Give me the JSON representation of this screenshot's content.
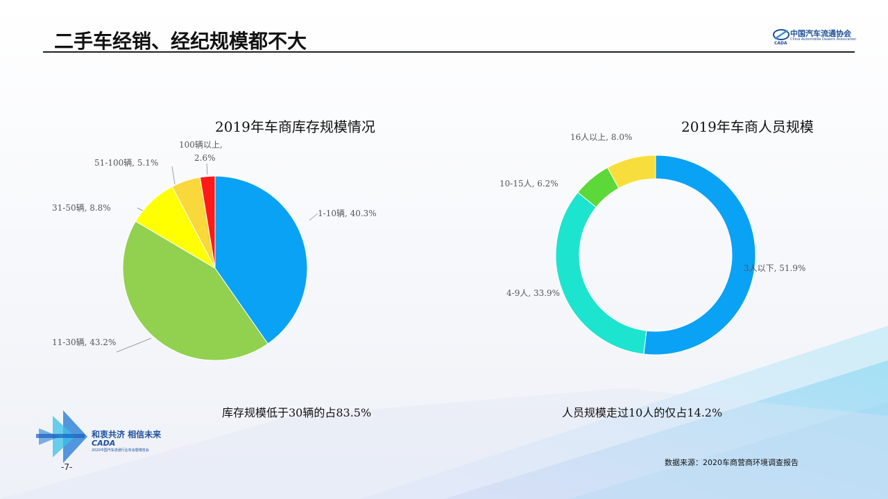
{
  "header": {
    "title": "二手车经销、经纪规模都不大",
    "logo_name": "中国汽车流通协会",
    "logo_subtitle": "China Automobile Dealers Association"
  },
  "charts": {
    "left_title": "2019年车商库存规模情况",
    "right_title": "2019年车商人员规模",
    "left_caption": "库存规模低于30辆的占83.5%",
    "right_caption": "人员规模走过10人的仅占14.2%"
  },
  "footer": {
    "source": "数据来源：2020车商营商环境调查报告",
    "page_number": "-7-",
    "event_slogan": "和衷共济 相信未来",
    "event_brand": "CADA",
    "event_name": "2020中国汽车流通行业年会暨博览会"
  },
  "chart_data": [
    {
      "type": "pie",
      "title": "2019年车商库存规模情况",
      "categories": [
        "1-10辆",
        "11-30辆",
        "31-50辆",
        "51-100辆",
        "100辆以上"
      ],
      "values": [
        40.3,
        43.2,
        8.8,
        5.1,
        2.6
      ],
      "labels": [
        "1-10辆, 40.3%",
        "11-30辆, 43.2%",
        "31-50辆, 8.8%",
        "51-100辆, 5.1%",
        "100辆以上, 2.6%"
      ],
      "colors": [
        "#0aa2f5",
        "#92d050",
        "#ffff00",
        "#f8d83a",
        "#ff1a1a"
      ]
    },
    {
      "type": "pie",
      "variant": "donut",
      "title": "2019年车商人员规模",
      "categories": [
        "3人以下",
        "4-9人",
        "10-15人",
        "16人以上"
      ],
      "values": [
        51.9,
        33.9,
        6.2,
        8.0
      ],
      "labels": [
        "3人以下, 51.9%",
        "4-9人, 33.9%",
        "10-15人, 6.2%",
        "16人以上, 8.0%"
      ],
      "colors": [
        "#0aa2f5",
        "#1de4cf",
        "#5cd938",
        "#f8de3c"
      ]
    }
  ]
}
